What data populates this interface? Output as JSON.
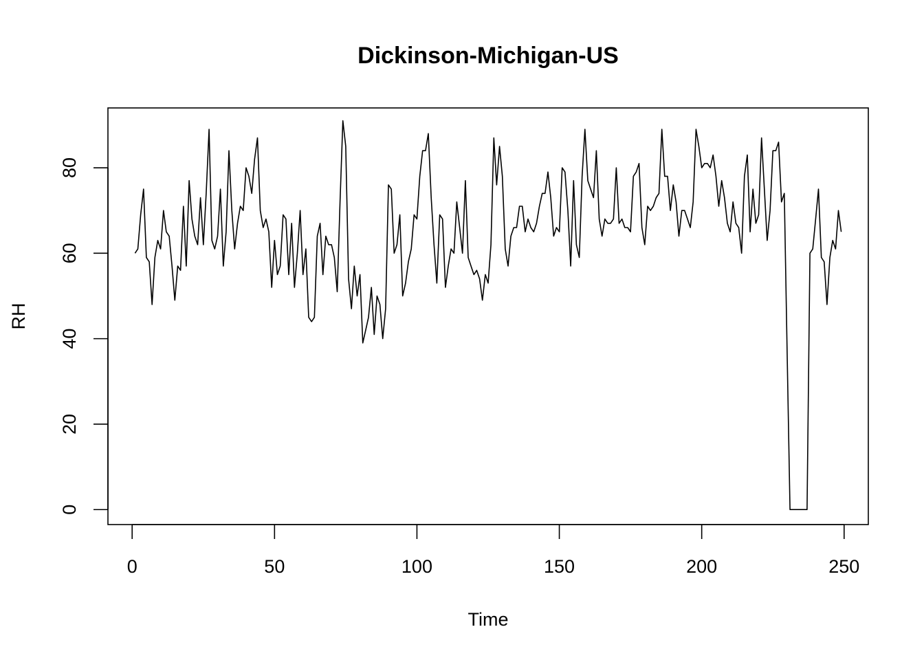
{
  "chart_data": {
    "type": "line",
    "title": "Dickinson-Michigan-US",
    "xlabel": "Time",
    "ylabel": "RH",
    "xlim": [
      -8.5,
      258.5
    ],
    "ylim": [
      -3.5,
      94
    ],
    "x_ticks": [
      0,
      50,
      100,
      150,
      200,
      250
    ],
    "y_ticks": [
      0,
      20,
      40,
      60,
      80
    ],
    "grid": false,
    "line_color": "#000000",
    "series": [
      {
        "x_start": 1,
        "values": [
          60,
          61,
          69,
          75,
          59,
          58,
          48,
          59,
          63,
          61,
          70,
          65,
          64,
          57,
          49,
          57,
          56,
          71,
          57,
          77,
          68,
          64,
          62,
          73,
          62,
          74,
          89,
          63,
          61,
          64,
          75,
          57,
          65,
          84,
          70,
          61,
          67,
          71,
          70,
          80,
          78,
          74,
          82,
          87,
          70,
          66,
          68,
          65,
          52,
          63,
          55,
          57,
          69,
          68,
          55,
          67,
          52,
          60,
          70,
          55,
          61,
          45,
          44,
          45,
          64,
          67,
          55,
          64,
          62,
          62,
          59,
          51,
          72,
          91,
          85,
          54,
          47,
          57,
          50,
          55,
          39,
          42,
          45,
          52,
          41,
          50,
          48,
          40,
          47,
          76,
          75,
          60,
          62,
          69,
          50,
          53,
          58,
          61,
          69,
          68,
          78,
          84,
          84,
          88,
          73,
          62,
          53,
          69,
          68,
          52,
          57,
          61,
          60,
          72,
          66,
          60,
          77,
          59,
          57,
          55,
          56,
          54,
          49,
          55,
          53,
          62,
          87,
          76,
          85,
          78,
          61,
          57,
          64,
          66,
          66,
          71,
          71,
          65,
          68,
          66,
          65,
          67,
          71,
          74,
          74,
          79,
          73,
          64,
          66,
          65,
          80,
          79,
          70,
          57,
          77,
          62,
          59,
          78,
          89,
          77,
          75,
          73,
          84,
          68,
          64,
          68,
          67,
          67,
          68,
          80,
          67,
          68,
          66,
          66,
          65,
          78,
          79,
          81,
          66,
          62,
          71,
          70,
          71,
          73,
          74,
          89,
          78,
          78,
          70,
          76,
          72,
          64,
          70,
          70,
          68,
          66,
          72,
          89,
          85,
          80,
          81,
          81,
          80,
          83,
          78,
          71,
          77,
          73,
          67,
          65,
          72,
          67,
          66,
          60,
          78,
          83,
          65,
          75,
          67,
          69,
          87,
          75,
          63,
          70,
          84,
          84,
          86,
          72,
          74,
          37,
          0,
          0,
          0,
          0,
          0,
          0,
          0,
          60,
          61,
          68,
          75,
          59,
          58,
          48,
          59,
          63,
          61,
          70,
          65
        ]
      }
    ]
  }
}
